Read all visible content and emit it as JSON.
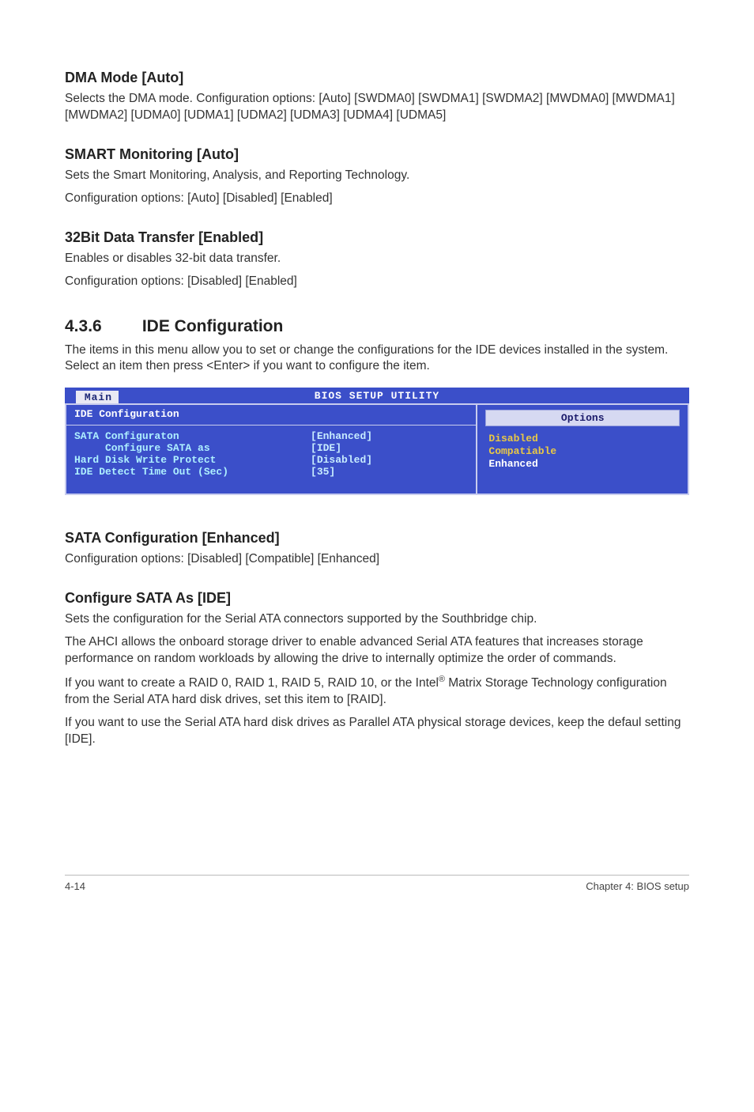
{
  "sections": {
    "dma": {
      "heading": "DMA Mode [Auto]",
      "body": "Selects the DMA mode. Configuration options: [Auto] [SWDMA0] [SWDMA1] [SWDMA2] [MWDMA0] [MWDMA1] [MWDMA2] [UDMA0] [UDMA1] [UDMA2] [UDMA3] [UDMA4] [UDMA5]"
    },
    "smart": {
      "heading": "SMART Monitoring [Auto]",
      "body1": "Sets the Smart Monitoring, Analysis, and Reporting Technology.",
      "body2": "Configuration options: [Auto] [Disabled] [Enabled]"
    },
    "bit32": {
      "heading": "32Bit Data Transfer [Enabled]",
      "body1": "Enables or disables 32-bit data transfer.",
      "body2": "Configuration options: [Disabled] [Enabled]"
    },
    "ideconf": {
      "number": "4.3.6",
      "title": "IDE Configuration",
      "intro": "The items in this menu allow you to set or change the configurations for the IDE devices installed in the system. Select an item then press <Enter> if you want to configure the item."
    },
    "sataconf": {
      "heading": "SATA Configuration [Enhanced]",
      "body": "Configuration options: [Disabled] [Compatible] [Enhanced]"
    },
    "confsata": {
      "heading": "Configure SATA As [IDE]",
      "p1": "Sets the configuration for the Serial ATA connectors supported by the Southbridge chip.",
      "p2": "The AHCI allows the onboard storage driver to enable advanced Serial ATA features that increases storage performance on random workloads by allowing the drive to internally optimize the order of commands.",
      "p3a": "If you want to create a RAID 0, RAID 1,  RAID 5,  RAID 10, or the Intel",
      "p3b": " Matrix Storage Technology configuration from the Serial ATA hard disk drives, set this item to [RAID].",
      "p4": "If you want to use the Serial ATA hard disk drives as Parallel ATA physical storage devices, keep the defaul setting [IDE]."
    }
  },
  "bios": {
    "title": "BIOS SETUP UTILITY",
    "tab": "Main",
    "left_header": "IDE Configuration",
    "right_header": "Options",
    "rows": [
      {
        "k": "SATA Configuraton",
        "v": "[Enhanced]"
      },
      {
        "k": "     Configure SATA as",
        "v": "[IDE]"
      },
      {
        "k": "",
        "v": ""
      },
      {
        "k": "Hard Disk Write Protect",
        "v": "[Disabled]"
      },
      {
        "k": "IDE Detect Time Out (Sec)",
        "v": "[35]"
      }
    ],
    "options": [
      {
        "label": "Disabled",
        "selected": false
      },
      {
        "label": "Compatiable",
        "selected": false
      },
      {
        "label": "Enhanced",
        "selected": true
      }
    ],
    "colors": {
      "bar_bg": "#3b4fc9",
      "bar_fg": "#ffffff",
      "tab_bg": "#e9e9f4",
      "tab_fg": "#1d2876",
      "panel_bg": "#3b4fc9",
      "border": "#c8ccee",
      "row_text": "#aef0ff",
      "opt_text": "#e9c845",
      "opt_sel": "#ffffff",
      "options_header_bg": "#d6d9f2",
      "options_header_fg": "#1a1a6a"
    }
  },
  "footer": {
    "left": "4-14",
    "right": "Chapter 4: BIOS setup"
  }
}
